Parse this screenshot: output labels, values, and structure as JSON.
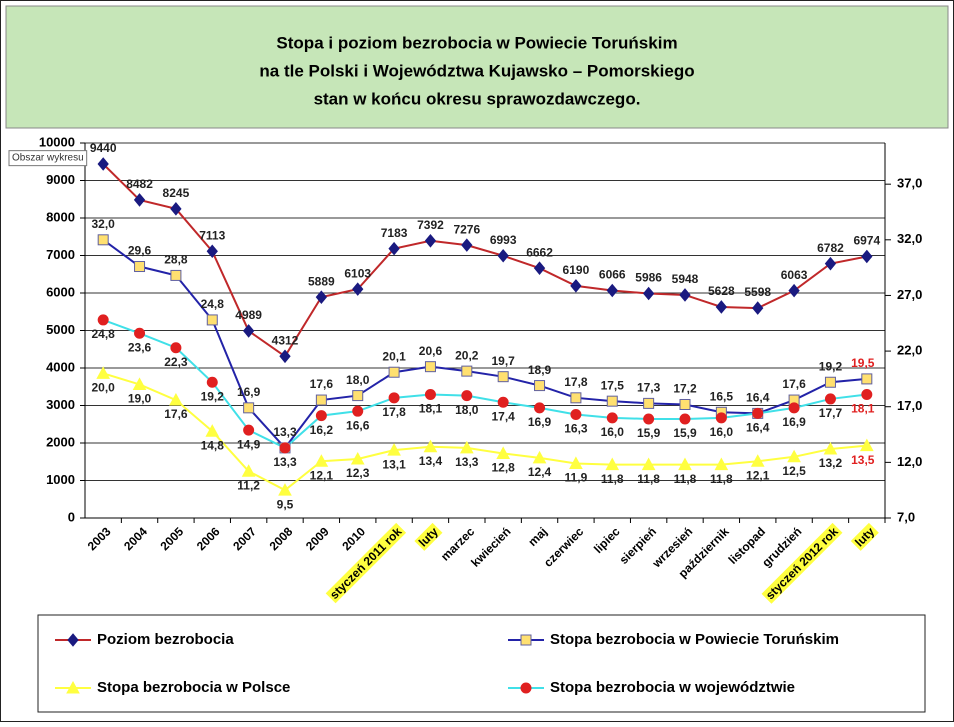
{
  "chart_data": {
    "type": "line",
    "title": [
      "Stopa i poziom bezrobocia w Powiecie Toruńskim",
      "na tle Polski i Województwa Kujawsko – Pomorskiego",
      "stan w końcu okresu sprawozdawczego."
    ],
    "tooltip": "Obszar wykresu",
    "categories": [
      "2003",
      "2004",
      "2005",
      "2006",
      "2007",
      "2008",
      "2009",
      "2010",
      "styczeń 2011 rok",
      "luty",
      "marzec",
      "kwiecień",
      "maj",
      "czerwiec",
      "lipiec",
      "sierpień",
      "wrzesień",
      "październik",
      "listopad",
      "grudzień",
      "styczeń 2012 rok",
      "luty"
    ],
    "highlighted_categories": [
      8,
      9,
      20,
      21
    ],
    "highlight_color": "#ffff40",
    "ylim": [
      0,
      10000
    ],
    "yticks": [
      0,
      1000,
      2000,
      3000,
      4000,
      5000,
      6000,
      7000,
      8000,
      9000,
      10000
    ],
    "y2lim": [
      7,
      40.7
    ],
    "y2ticks": [
      {
        "value": 7,
        "label": "7,0"
      },
      {
        "value": 12,
        "label": "12,0"
      },
      {
        "value": 17,
        "label": "17,0"
      },
      {
        "value": 22,
        "label": "22,0"
      },
      {
        "value": 27,
        "label": "27,0"
      },
      {
        "value": 32,
        "label": "32,0"
      },
      {
        "value": 37,
        "label": "37,0"
      }
    ],
    "grid": true,
    "last_label_color": "#e02020",
    "series": [
      {
        "name": "Poziom bezrobocia",
        "color": "#c0282a",
        "marker": "diamond",
        "marker_color": "#1a1a80",
        "label_pos": "above",
        "values": [
          9440,
          8482,
          8245,
          7113,
          4989,
          4312,
          5889,
          6103,
          7183,
          7392,
          7276,
          6993,
          6662,
          6190,
          6066,
          5986,
          5948,
          5628,
          5598,
          6063,
          6782,
          6974
        ]
      },
      {
        "name": "Stopa bezrobocia w Powiecie Toruńskim",
        "color": "#2323a8",
        "marker": "square",
        "marker_color": "#ffe070",
        "axis": "y2",
        "label_pos": "above",
        "values": [
          32.0,
          29.6,
          28.8,
          24.8,
          16.9,
          13.3,
          17.6,
          18.0,
          20.1,
          20.6,
          20.2,
          19.7,
          18.9,
          17.8,
          17.5,
          17.3,
          17.2,
          16.5,
          16.4,
          17.6,
          19.2,
          19.5
        ],
        "value_labels": [
          "32,0",
          "29,6",
          "28,8",
          "24,8",
          "16,9",
          "13,3",
          "17,6",
          "18,0",
          "20,1",
          "20,6",
          "20,2",
          "19,7",
          "18,9",
          "17,8",
          "17,5",
          "17,3",
          "17,2",
          "16,5",
          "16,4",
          "17,6",
          "19,2",
          "19,5"
        ]
      },
      {
        "name": "Stopa bezrobocia w Polsce",
        "color": "#ffff40",
        "marker": "triangle",
        "marker_color": "#ffff40",
        "axis": "y2",
        "label_pos": "below",
        "values": [
          20.0,
          19.0,
          17.6,
          14.8,
          11.2,
          9.5,
          12.1,
          12.3,
          13.1,
          13.4,
          13.3,
          12.8,
          12.4,
          11.9,
          11.8,
          11.8,
          11.8,
          11.8,
          12.1,
          12.5,
          13.2,
          13.5
        ],
        "value_labels": [
          "20,0",
          "19,0",
          "17,6",
          "14,8",
          "11,2",
          "9,5",
          "12,1",
          "12,3",
          "13,1",
          "13,4",
          "13,3",
          "12,8",
          "12,4",
          "11,9",
          "11,8",
          "11,8",
          "11,8",
          "11,8",
          "12,1",
          "12,5",
          "13,2",
          "13,5"
        ]
      },
      {
        "name": "Stopa bezrobocia w województwie",
        "color": "#40e0e8",
        "marker": "circle",
        "marker_color": "#e02020",
        "axis": "y2",
        "label_pos": "below",
        "values": [
          24.8,
          23.6,
          22.3,
          19.2,
          14.9,
          13.3,
          16.2,
          16.6,
          17.8,
          18.1,
          18.0,
          17.4,
          16.9,
          16.3,
          16.0,
          15.9,
          15.9,
          16.0,
          16.4,
          16.9,
          17.7,
          18.1
        ],
        "value_labels": [
          "24,8",
          "23,6",
          "22,3",
          "19,2",
          "14,9",
          "13,3",
          "16,2",
          "16,6",
          "17,8",
          "18,1",
          "18,0",
          "17,4",
          "16,9",
          "16,3",
          "16,0",
          "15,9",
          "15,9",
          "16,0",
          "16,4",
          "16,9",
          "17,7",
          "18,1"
        ]
      }
    ]
  }
}
